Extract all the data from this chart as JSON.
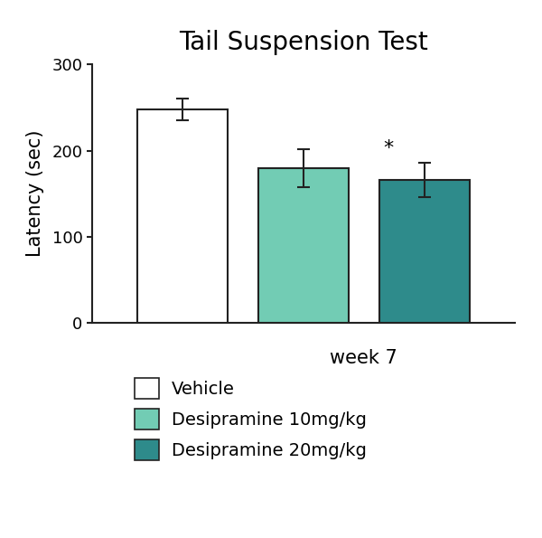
{
  "title": "Tail Suspension Test",
  "ylabel": "Latency (sec)",
  "xlabel": "week 7",
  "categories": [
    "Vehicle",
    "Desipramine 10mg/kg",
    "Desipramine 20mg/kg"
  ],
  "values": [
    248,
    180,
    166
  ],
  "errors": [
    13,
    22,
    20
  ],
  "bar_colors": [
    "#ffffff",
    "#72ccb4",
    "#2e8b8b"
  ],
  "bar_edgecolors": [
    "#222222",
    "#222222",
    "#222222"
  ],
  "ylim": [
    0,
    300
  ],
  "yticks": [
    0,
    100,
    200,
    300
  ],
  "significance": [
    false,
    false,
    true
  ],
  "significance_symbol": "*",
  "legend_labels": [
    "Vehicle",
    "Desipramine 10mg/kg",
    "Desipramine 20mg/kg"
  ],
  "legend_colors": [
    "#ffffff",
    "#72ccb4",
    "#2e8b8b"
  ],
  "title_fontsize": 20,
  "label_fontsize": 15,
  "tick_fontsize": 13,
  "legend_fontsize": 14,
  "bar_width": 0.45,
  "x_positions": [
    0,
    0.6,
    1.2
  ],
  "figsize": [
    6.0,
    5.95
  ],
  "dpi": 100
}
